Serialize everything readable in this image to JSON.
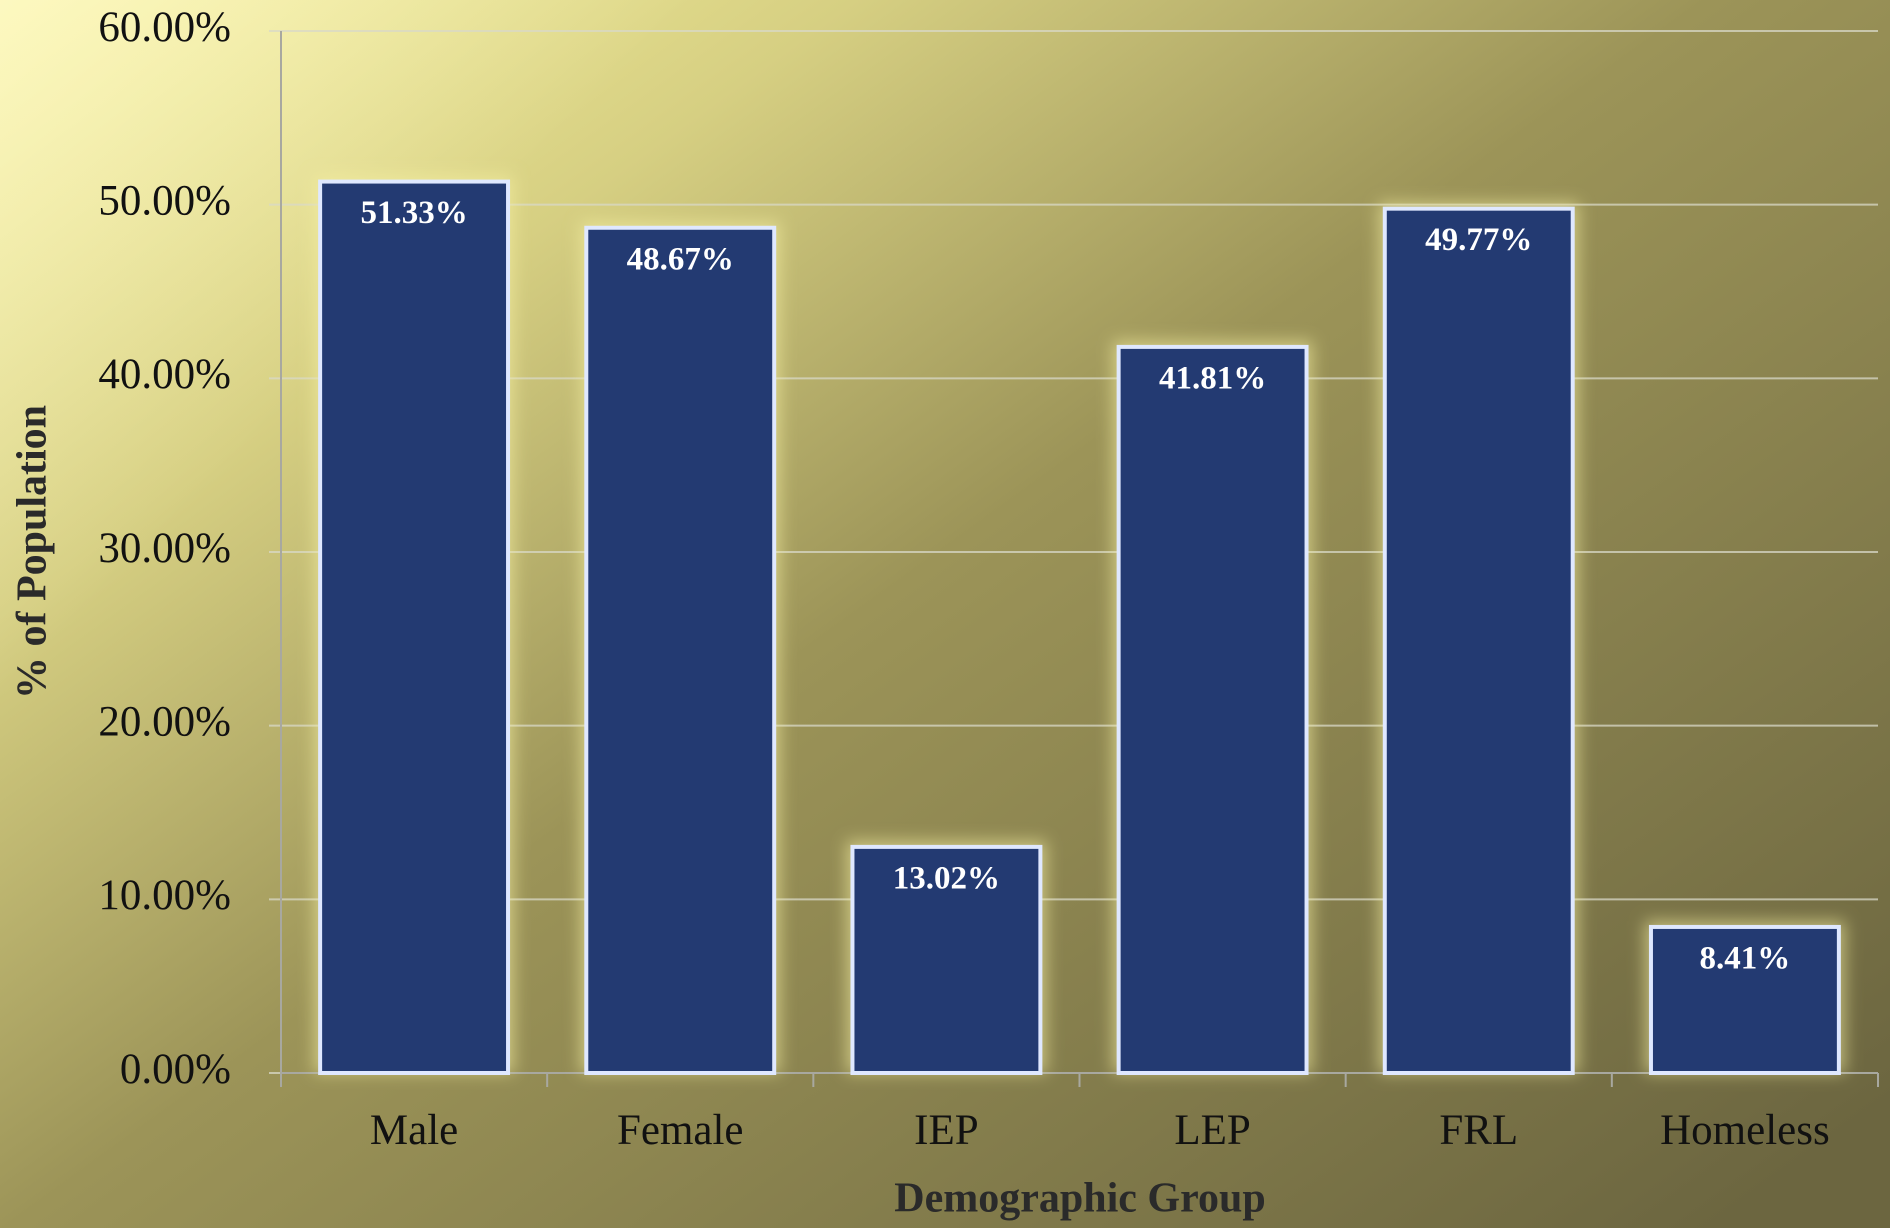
{
  "chart_data": {
    "type": "bar",
    "xlabel": "Demographic Group",
    "ylabel": "% of Population",
    "categories": [
      "Male",
      "Female",
      "IEP",
      "LEP",
      "FRL",
      "Homeless"
    ],
    "values": [
      51.33,
      48.67,
      13.02,
      41.81,
      49.77,
      8.41
    ],
    "value_labels": [
      "51.33%",
      "48.67%",
      "13.02%",
      "41.81%",
      "49.77%",
      "8.41%"
    ],
    "color": "#233a72",
    "ylim": [
      0,
      60
    ],
    "yticks": [
      {
        "value": 0,
        "label": "0.00%"
      },
      {
        "value": 10,
        "label": "10.00%"
      },
      {
        "value": 20,
        "label": "20.00%"
      },
      {
        "value": 30,
        "label": "30.00%"
      },
      {
        "value": 40,
        "label": "40.00%"
      },
      {
        "value": 50,
        "label": "50.00%"
      },
      {
        "value": 60,
        "label": "60.00%"
      }
    ],
    "grid": true
  }
}
